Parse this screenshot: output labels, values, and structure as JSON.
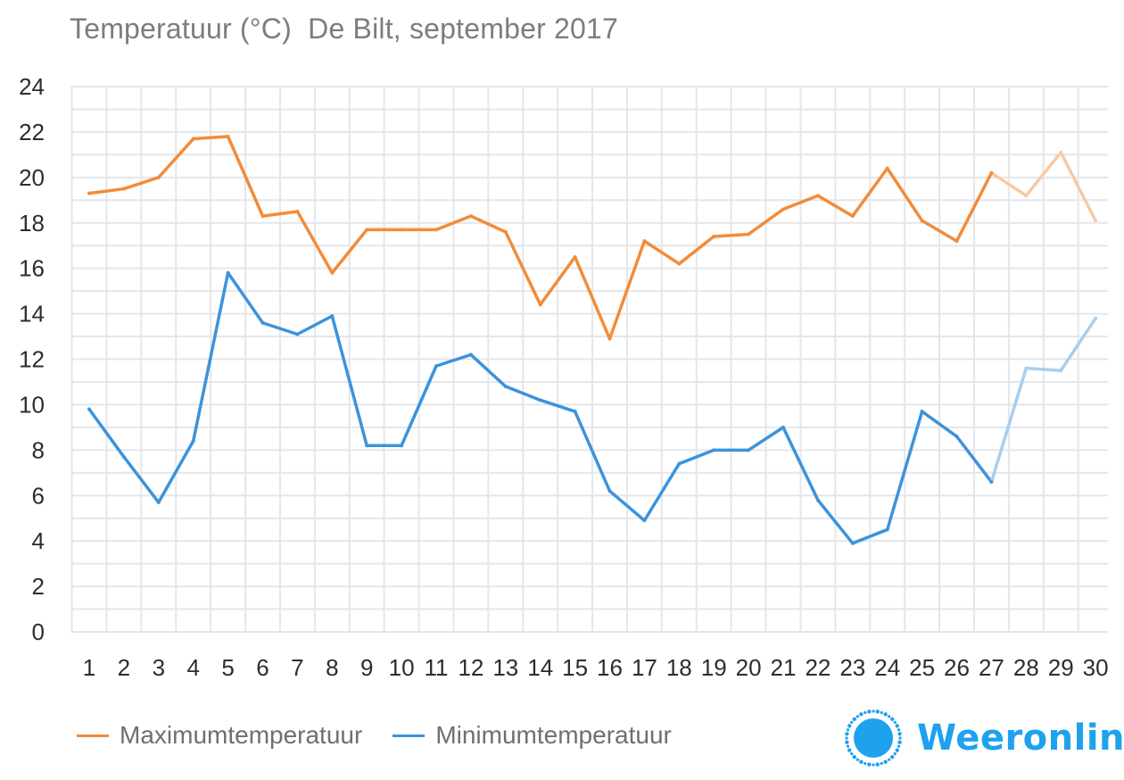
{
  "title": "Temperatuur (°C)  De Bilt, september 2017",
  "brand": {
    "name": "Weeronline",
    "icon": "sun-logo-icon",
    "color": "#1ea2ee"
  },
  "colors": {
    "max": "#f28c3a",
    "max_forecast": "#f8c9a2",
    "min": "#3c93dc",
    "min_forecast": "#a9cdee",
    "grid": "#e4e6ea"
  },
  "chart_data": {
    "type": "line",
    "title": "Temperatuur (°C)  De Bilt, september 2017",
    "x": [
      1,
      2,
      3,
      4,
      5,
      6,
      7,
      8,
      9,
      10,
      11,
      12,
      13,
      14,
      15,
      16,
      17,
      18,
      19,
      20,
      21,
      22,
      23,
      24,
      25,
      26,
      27,
      28,
      29,
      30
    ],
    "ylim": [
      0,
      24
    ],
    "yticks": [
      0,
      2,
      4,
      6,
      8,
      10,
      12,
      14,
      16,
      18,
      20,
      22,
      24
    ],
    "grid": true,
    "legend_position": "bottom-left",
    "forecast_from_day": 27,
    "series": [
      {
        "name": "Maximumtemperatuur",
        "values": [
          19.3,
          19.5,
          20.0,
          21.7,
          21.8,
          18.3,
          18.5,
          15.8,
          17.7,
          17.7,
          17.7,
          18.3,
          17.6,
          14.4,
          16.5,
          12.9,
          17.2,
          16.2,
          17.4,
          17.5,
          18.6,
          19.2,
          18.3,
          20.4,
          18.1,
          17.2,
          20.2,
          19.2,
          21.1,
          18.1
        ]
      },
      {
        "name": "Minimumtemperatuur",
        "values": [
          9.8,
          7.7,
          5.7,
          8.4,
          15.8,
          13.6,
          13.1,
          13.9,
          8.2,
          8.2,
          11.7,
          12.2,
          10.8,
          10.2,
          9.7,
          6.2,
          4.9,
          7.4,
          8.0,
          8.0,
          9.0,
          5.8,
          3.9,
          4.5,
          9.7,
          8.6,
          6.6,
          11.6,
          11.5,
          13.8
        ]
      }
    ]
  }
}
